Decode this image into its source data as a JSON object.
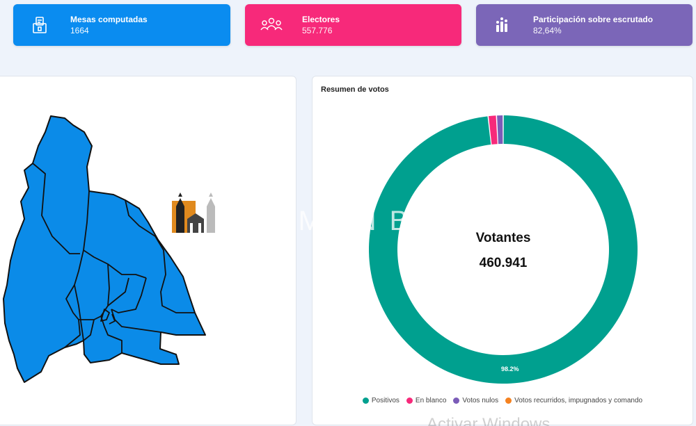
{
  "cards": [
    {
      "id": "mesas",
      "label": "Mesas computadas",
      "value": "1664",
      "color": "#0a8cf0",
      "icon": "ballot-box-icon"
    },
    {
      "id": "electores",
      "label": "Electores",
      "value": "557.776",
      "color": "#f7297a",
      "icon": "people-group-icon"
    },
    {
      "id": "participacion",
      "label": "Participación sobre escrutado",
      "value": "82,64%",
      "color": "#7b66b8",
      "icon": "participation-hands-icon"
    }
  ],
  "map": {
    "fill_color": "#0b8be8",
    "stroke_color": "#111111"
  },
  "chart_data": {
    "type": "pie",
    "title": "Resumen de votos",
    "center_label": "Votantes",
    "center_value": "460.941",
    "slices": [
      {
        "name": "Positivos",
        "value": 98.2,
        "color": "#00a08f",
        "data_label": "98.2%"
      },
      {
        "name": "En blanco",
        "value": 1.0,
        "color": "#f7297a",
        "data_label": ""
      },
      {
        "name": "Votos nulos",
        "value": 0.8,
        "color": "#7b5cb8",
        "data_label": ""
      },
      {
        "name": "Votos recurridos, impugnados y comando",
        "value": 0.0,
        "color": "#f58220",
        "data_label": ""
      }
    ],
    "legend_position": "bottom"
  },
  "watermark": {
    "text": "DAMIAN B"
  },
  "os_notice": {
    "text": "Activar Windows"
  }
}
